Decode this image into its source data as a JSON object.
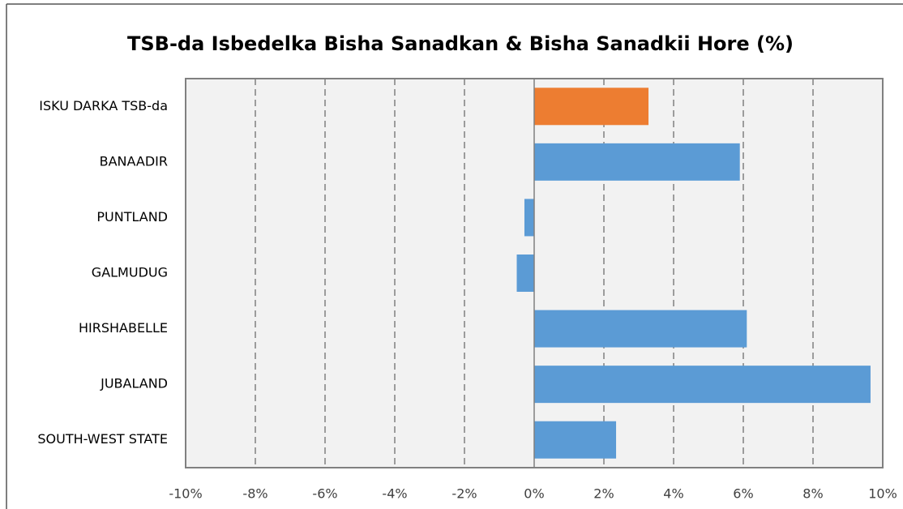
{
  "chart_data": {
    "type": "hbar",
    "title": "TSB-da Isbedelka Bisha Sanadkan & Bisha Sanadkii Hore (%)",
    "categories": [
      "ISKU DARKA TSB-da",
      "BANAADIR",
      "PUNTLAND",
      "GALMUDUG",
      "HIRSHABELLE",
      "JUBALAND",
      "SOUTH-WEST STATE"
    ],
    "values": [
      3.28,
      5.9,
      -0.28,
      -0.5,
      6.1,
      9.65,
      2.35
    ],
    "colors": [
      "#ed7d31",
      "#5b9bd5",
      "#5b9bd5",
      "#5b9bd5",
      "#5b9bd5",
      "#5b9bd5",
      "#5b9bd5"
    ],
    "xlim": [
      -10,
      10
    ],
    "xticks": [
      {
        "value": -10,
        "label": "-10%"
      },
      {
        "value": -8,
        "label": "-8%"
      },
      {
        "value": -6,
        "label": "-6%"
      },
      {
        "value": -4,
        "label": "-4%"
      },
      {
        "value": -2,
        "label": "-2%"
      },
      {
        "value": 0,
        "label": "0%"
      },
      {
        "value": 2,
        "label": "2%"
      },
      {
        "value": 4,
        "label": "4%"
      },
      {
        "value": 6,
        "label": "6%"
      },
      {
        "value": 8,
        "label": "8%"
      },
      {
        "value": 10,
        "label": "10%"
      }
    ],
    "grid": true
  }
}
